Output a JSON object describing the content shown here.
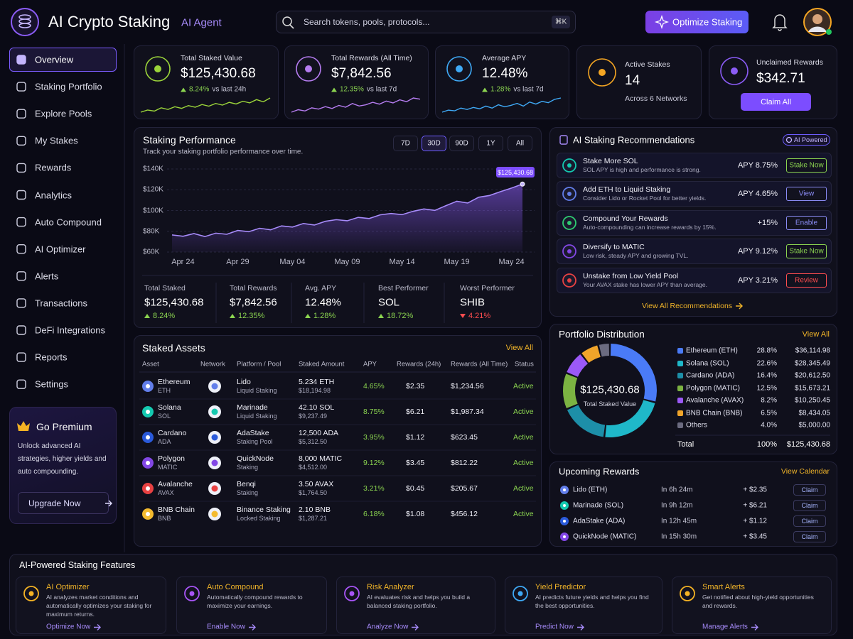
{
  "header": {
    "title": "AI Crypto Staking",
    "badge": "AI Agent",
    "search_placeholder": "Search tokens, pools, protocols...",
    "shortcut": "⌘K",
    "action": "Optimize Staking"
  },
  "sidebar": {
    "nav": [
      "Overview",
      "Staking Portfolio",
      "Explore Pools",
      "My Stakes",
      "Rewards",
      "Analytics",
      "Auto Compound",
      "AI Optimizer",
      "Alerts",
      "Transactions",
      "DeFi Integrations",
      "Reports",
      "Settings"
    ],
    "active": 0,
    "premium": {
      "title": "Go Premium",
      "text": "Unlock advanced AI strategies, higher yields and auto compounding.",
      "button": "Upgrade Now"
    }
  },
  "kpis": [
    {
      "label": "Total Staked Value",
      "value": "$125,430.68",
      "change": "8.24%",
      "note": "vs last 24h",
      "color": "#9bd43a",
      "sparkline": [
        10,
        14,
        12,
        18,
        15,
        20,
        17,
        22,
        19,
        24,
        21,
        26,
        23,
        28,
        25,
        30,
        27,
        33,
        29,
        36
      ]
    },
    {
      "label": "Total Rewards (All Time)",
      "value": "$7,842.56",
      "change": "12.35%",
      "note": "vs last 7d",
      "color": "#b57cf0",
      "sparkline": [
        8,
        12,
        10,
        15,
        13,
        17,
        14,
        19,
        16,
        22,
        18,
        20,
        24,
        21,
        26,
        23,
        28,
        25,
        31,
        29
      ]
    },
    {
      "label": "Average APY",
      "value": "12.48%",
      "change": "1.28%",
      "note": "vs last 7d",
      "color": "#3fa9f5",
      "sparkline": [
        6,
        9,
        8,
        12,
        10,
        13,
        11,
        15,
        12,
        17,
        14,
        16,
        19,
        15,
        21,
        18,
        22,
        20,
        25,
        27
      ]
    },
    {
      "label": "Active Stakes",
      "value": 14,
      "note": "Across 6 Networks",
      "color": "#f5a623"
    },
    {
      "label": "Unclaimed Rewards",
      "value": "$342.71",
      "button": "Claim All",
      "color": "#8b5cf6"
    }
  ],
  "performance": {
    "title": "Staking Performance",
    "subtitle": "Track your staking portfolio performance over time.",
    "ranges": [
      "7D",
      "30D",
      "90D",
      "1Y",
      "All"
    ],
    "selected_range": 1,
    "chart_data": {
      "type": "line",
      "color": "#a78bfa",
      "categories": [
        null,
        "Apr 24",
        null,
        null,
        null,
        null,
        "Apr 29",
        null,
        null,
        null,
        null,
        "May 04",
        null,
        null,
        null,
        null,
        "May 09",
        null,
        null,
        null,
        null,
        "May 14",
        null,
        null,
        null,
        null,
        "May 19",
        null,
        null,
        null,
        null,
        "May 24",
        null
      ],
      "values": [
        76500,
        75200,
        77800,
        74900,
        78200,
        77100,
        80800,
        79600,
        82900,
        81400,
        85200,
        84100,
        87500,
        86000,
        89600,
        91200,
        90100,
        93400,
        92300,
        95800,
        97100,
        96000,
        99200,
        101500,
        100100,
        104600,
        108900,
        107200,
        112800,
        114500,
        118200,
        121600,
        125430.68
      ],
      "value_labels": [
        null,
        null,
        null,
        null,
        null,
        null,
        null,
        null,
        null,
        null,
        null,
        null,
        null,
        null,
        null,
        null,
        null,
        null,
        null,
        null,
        null,
        null,
        null,
        null,
        null,
        null,
        null,
        null,
        null,
        null,
        null,
        null,
        "$125,430.68"
      ],
      "ylim": [
        60000,
        140000
      ],
      "yticks": [
        {
          "value": 140000,
          "label": "$140K"
        },
        {
          "value": 120000,
          "label": "$120K"
        },
        {
          "value": 100000,
          "label": "$100K"
        },
        {
          "value": 80000,
          "label": "$80K"
        },
        {
          "value": 60000,
          "label": "$60K"
        }
      ],
      "grid": true
    }
  },
  "summary": [
    {
      "label": "Total Staked",
      "value": "$125,430.68",
      "change": "8.24%",
      "trend": "up"
    },
    {
      "label": "Total Rewards",
      "value": "$7,842.56",
      "change": "12.35%",
      "trend": "up"
    },
    {
      "label": "Avg. APY",
      "value": "12.48%",
      "change": "1.28%",
      "trend": "up"
    },
    {
      "label": "Best Performer",
      "value": "SOL",
      "change": "18.72%",
      "trend": "up"
    },
    {
      "label": "Worst Performer",
      "value": "SHIB",
      "change": "4.21%",
      "trend": "down"
    }
  ],
  "staked_assets": {
    "title": "Staked Assets",
    "link": "View All",
    "columns": [
      "Asset",
      "Network",
      "Platform / Pool",
      "Staked Amount",
      "APY",
      "Rewards (24h)",
      "Rewards (All Time)",
      "Status"
    ],
    "rows": [
      {
        "asset": "Ethereum",
        "symbol": "ETH",
        "platform": "Lido",
        "pool": "Liquid Staking",
        "amount": "5.234 ETH",
        "amount_usd": "$18,194.98",
        "apy": "4.65%",
        "rewards_24h": "$2.35",
        "rewards_all": "$1,234.56",
        "status": "Active",
        "color": "#627eea"
      },
      {
        "asset": "Solana",
        "symbol": "SOL",
        "platform": "Marinade",
        "pool": "Liquid Staking",
        "amount": "42.10 SOL",
        "amount_usd": "$9,237.49",
        "apy": "8.75%",
        "rewards_24h": "$6.21",
        "rewards_all": "$1,987.34",
        "status": "Active",
        "color": "#14c9b0"
      },
      {
        "asset": "Cardano",
        "symbol": "ADA",
        "platform": "AdaStake",
        "pool": "Staking Pool",
        "amount": "12,500 ADA",
        "amount_usd": "$5,312.50",
        "apy": "3.95%",
        "rewards_24h": "$1.12",
        "rewards_all": "$623.45",
        "status": "Active",
        "color": "#2a5ada"
      },
      {
        "asset": "Polygon",
        "symbol": "MATIC",
        "platform": "QuickNode",
        "pool": "Staking",
        "amount": "8,000 MATIC",
        "amount_usd": "$4,512.00",
        "apy": "9.12%",
        "rewards_24h": "$3.45",
        "rewards_all": "$812.22",
        "status": "Active",
        "color": "#8247e5"
      },
      {
        "asset": "Avalanche",
        "symbol": "AVAX",
        "platform": "Benqi",
        "pool": "Staking",
        "amount": "3.50 AVAX",
        "amount_usd": "$1,764.50",
        "apy": "3.21%",
        "rewards_24h": "$0.45",
        "rewards_all": "$205.67",
        "status": "Active",
        "color": "#e84142"
      },
      {
        "asset": "BNB Chain",
        "symbol": "BNB",
        "platform": "Binance Staking",
        "pool": "Locked Staking",
        "amount": "2.10 BNB",
        "amount_usd": "$1,287.21",
        "apy": "6.18%",
        "rewards_24h": "$1.08",
        "rewards_all": "$456.12",
        "status": "Active",
        "color": "#f3ba2f"
      }
    ]
  },
  "recommendations": {
    "title": "AI Staking Recommendations",
    "badge": "AI Powered",
    "link": "View All Recommendations",
    "items": [
      {
        "title": "Stake More SOL",
        "desc": "SOL APY is high and performance is strong.",
        "metric": "APY 8.75%",
        "action": "Stake Now",
        "accent": "#8bd450",
        "icon_color": "#14c9b0"
      },
      {
        "title": "Add ETH to Liquid Staking",
        "desc": "Consider Lido or Rocket Pool for better yields.",
        "metric": "APY 4.65%",
        "action": "View",
        "accent": "#8b8cf6",
        "icon_color": "#627eea"
      },
      {
        "title": "Compound Your Rewards",
        "desc": "Auto-compounding can increase rewards by 15%.",
        "metric": "+15%",
        "action": "Enable",
        "accent": "#8b8cf6",
        "icon_color": "#2ecc71"
      },
      {
        "title": "Diversify to MATIC",
        "desc": "Low risk, steady APY and growing TVL.",
        "metric": "APY 9.12%",
        "action": "Stake Now",
        "accent": "#8bd450",
        "icon_color": "#8247e5"
      },
      {
        "title": "Unstake from Low Yield Pool",
        "desc": "Your AVAX stake has lower APY than average.",
        "metric": "APY 3.21%",
        "action": "Review",
        "accent": "#ff4d4f",
        "icon_color": "#e84142"
      }
    ]
  },
  "distribution": {
    "title": "Portfolio Distribution",
    "link": "View All",
    "center_value": "$125,430.68",
    "center_label": "Total Staked Value",
    "items": [
      {
        "name": "Ethereum (ETH)",
        "color": "#4a7bf7",
        "value": 28.8,
        "value_label": "28.8%",
        "amount": "$36,114.98"
      },
      {
        "name": "Solana (SOL)",
        "color": "#1fb8c9",
        "value": 22.6,
        "value_label": "22.6%",
        "amount": "$28,345.49"
      },
      {
        "name": "Cardano (ADA)",
        "color": "#1d8fa8",
        "value": 16.4,
        "value_label": "16.4%",
        "amount": "$20,612.50"
      },
      {
        "name": "Polygon (MATIC)",
        "color": "#7cb342",
        "value": 12.5,
        "value_label": "12.5%",
        "amount": "$15,673.21"
      },
      {
        "name": "Avalanche (AVAX)",
        "color": "#9b59f6",
        "value": 8.2,
        "value_label": "8.2%",
        "amount": "$10,250.45"
      },
      {
        "name": "BNB Chain (BNB)",
        "color": "#f0a42a",
        "value": 6.5,
        "value_label": "6.5%",
        "amount": "$8,434.05"
      },
      {
        "name": "Others",
        "color": "#6b6b80",
        "value": 4.0,
        "value_label": "4.0%",
        "amount": "$5,000.00"
      }
    ],
    "total": {
      "label": "Total",
      "percent": "100%",
      "amount": "$125,430.68"
    }
  },
  "upcoming": {
    "title": "Upcoming Rewards",
    "link": "View Calendar",
    "items": [
      {
        "name": "Lido (ETH)",
        "time": "In 6h 24m",
        "amount": "+ $2.35",
        "action": "Claim",
        "color": "#627eea"
      },
      {
        "name": "Marinade (SOL)",
        "time": "In 9h 12m",
        "amount": "+ $6.21",
        "action": "Claim",
        "color": "#14c9b0"
      },
      {
        "name": "AdaStake (ADA)",
        "time": "In 12h 45m",
        "amount": "+ $1.12",
        "action": "Claim",
        "color": "#2a5ada"
      },
      {
        "name": "QuickNode (MATIC)",
        "time": "In 15h 30m",
        "amount": "+ $3.45",
        "action": "Claim",
        "color": "#8247e5"
      }
    ]
  },
  "features": {
    "title": "AI-Powered Staking Features",
    "items": [
      {
        "title": "AI Optimizer",
        "desc": "AI analyzes market conditions and automatically optimizes your staking for maximum returns.",
        "link": "Optimize Now",
        "icon_color": "#f5b324"
      },
      {
        "title": "Auto Compound",
        "desc": "Automatically compound rewards to maximize your earnings.",
        "link": "Enable Now",
        "icon_color": "#a855f7"
      },
      {
        "title": "Risk Analyzer",
        "desc": "AI evaluates risk and helps you build a balanced staking portfolio.",
        "link": "Analyze Now",
        "icon_color": "#a855f7"
      },
      {
        "title": "Yield Predictor",
        "desc": "AI predicts future yields and helps you find the best opportunities.",
        "link": "Predict Now",
        "icon_color": "#3fa9f5"
      },
      {
        "title": "Smart Alerts",
        "desc": "Get notified about high-yield opportunities and rewards.",
        "link": "Manage Alerts",
        "icon_color": "#f5b324"
      }
    ]
  }
}
